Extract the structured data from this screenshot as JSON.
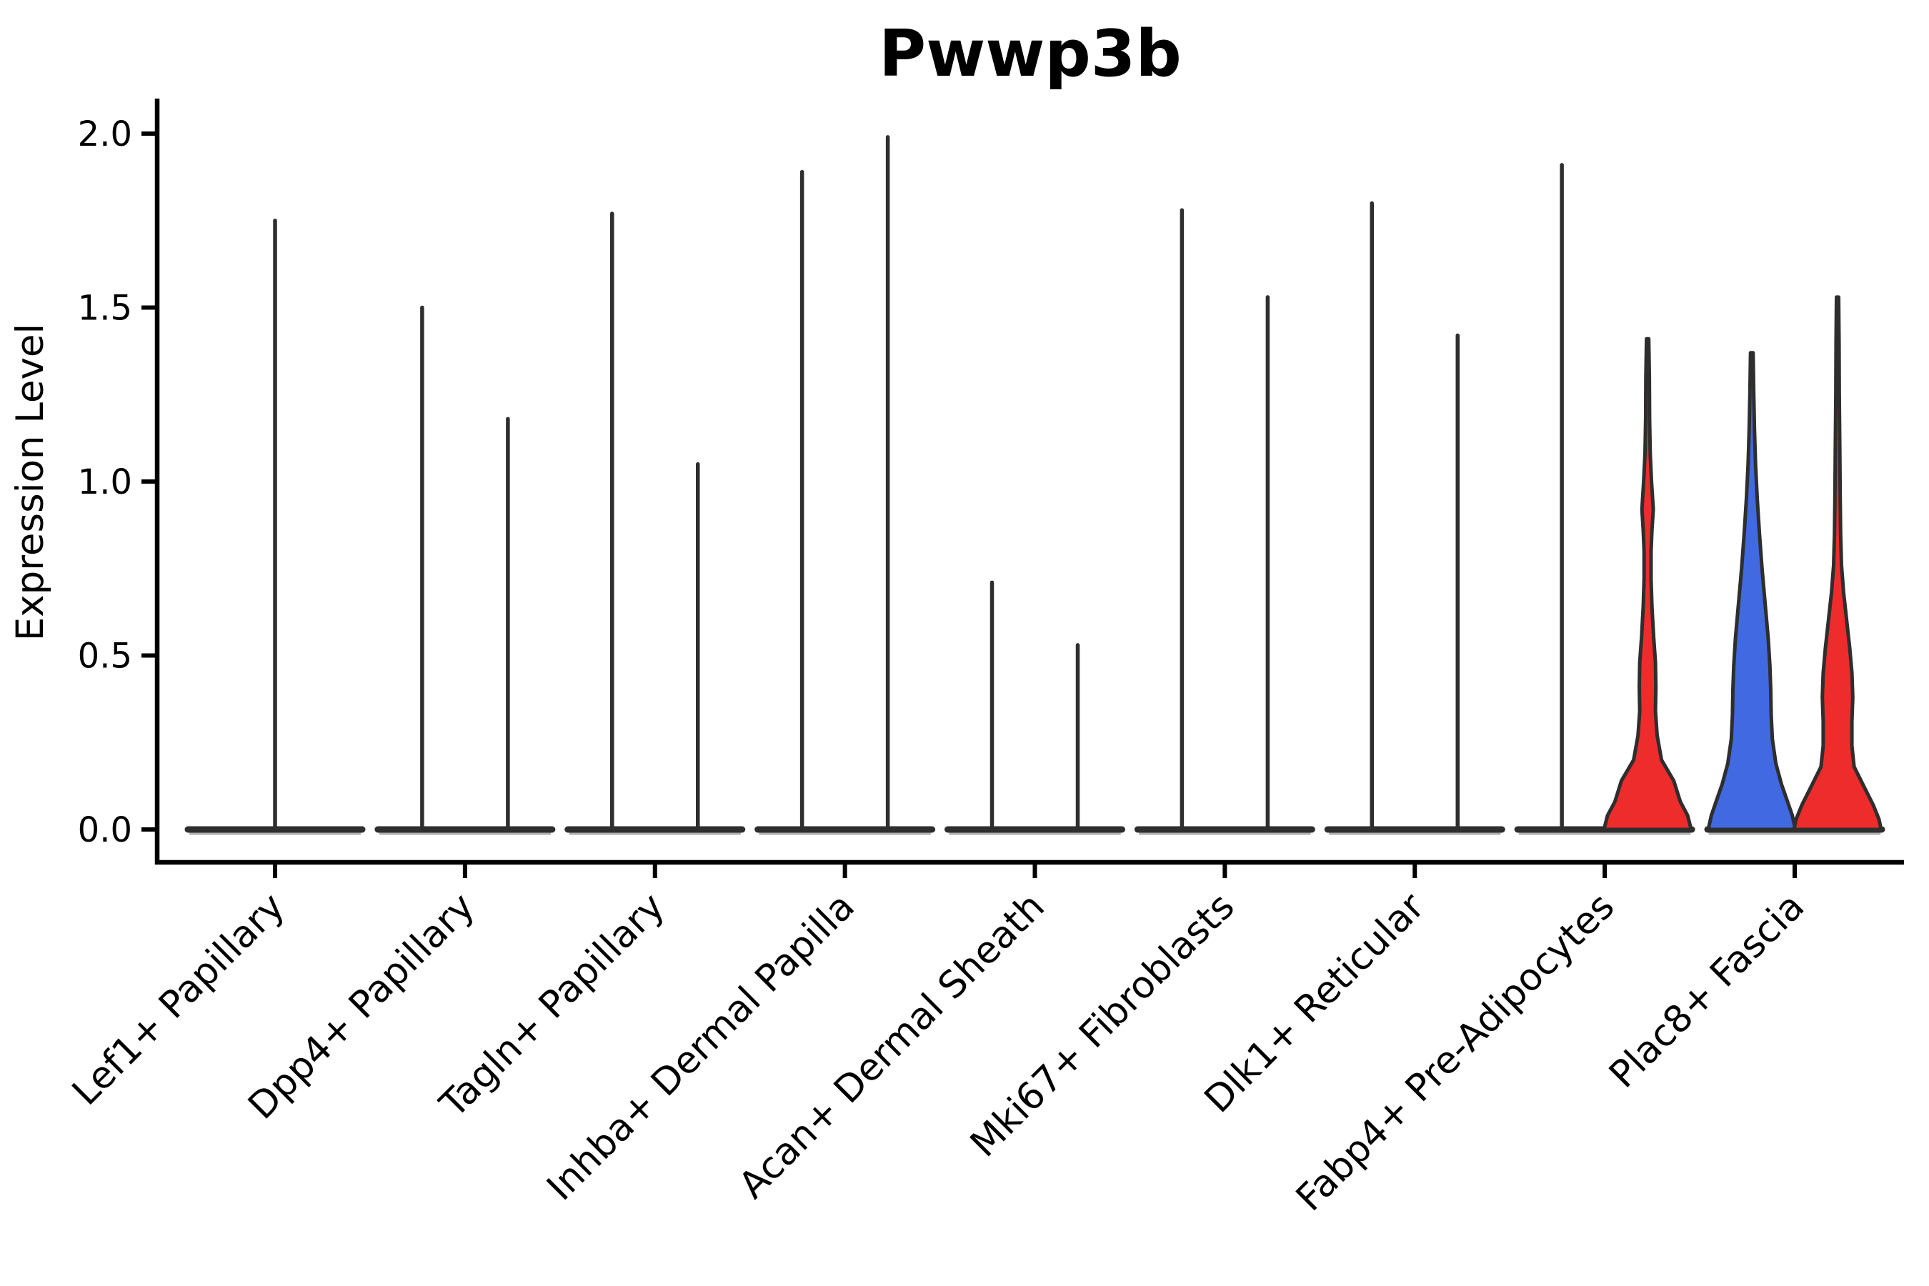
{
  "chart_data": {
    "type": "violin",
    "title": "Pwwp3b",
    "ylabel": "Expression Level",
    "xlabel": "",
    "ylim": [
      0.0,
      2.1
    ],
    "ytick_values": [
      0.0,
      0.5,
      1.0,
      1.5,
      2.0
    ],
    "ytick_labels": [
      "0.0",
      "0.5",
      "1.0",
      "1.5",
      "2.0"
    ],
    "grid": "off",
    "legend": "none",
    "split_violins_per_category": 2,
    "colors": {
      "red_fill": "#ee2c2c",
      "blue_fill": "#4169e1",
      "violin_outline": "#2e2e2e",
      "axis": "#000000",
      "background": "#ffffff"
    },
    "categories": [
      {
        "label": "Lef1+ Papillary",
        "violins": [
          {
            "type": "spike",
            "position": "center",
            "max_expression": 1.75,
            "fill": "none"
          }
        ]
      },
      {
        "label": "Dpp4+ Papillary",
        "violins": [
          {
            "type": "spike",
            "position": "left",
            "max_expression": 1.5,
            "fill": "none"
          },
          {
            "type": "spike",
            "position": "right",
            "max_expression": 1.18,
            "fill": "none"
          }
        ]
      },
      {
        "label": "Tagln+ Papillary",
        "violins": [
          {
            "type": "spike",
            "position": "left",
            "max_expression": 1.77,
            "fill": "none"
          },
          {
            "type": "spike",
            "position": "right",
            "max_expression": 1.05,
            "fill": "none"
          }
        ]
      },
      {
        "label": "Inhba+ Dermal Papilla",
        "violins": [
          {
            "type": "spike",
            "position": "left",
            "max_expression": 1.89,
            "fill": "none"
          },
          {
            "type": "spike",
            "position": "right",
            "max_expression": 1.99,
            "fill": "none"
          }
        ]
      },
      {
        "label": "Acan+ Dermal Sheath",
        "violins": [
          {
            "type": "spike",
            "position": "left",
            "max_expression": 0.71,
            "fill": "none"
          },
          {
            "type": "spike",
            "position": "right",
            "max_expression": 0.53,
            "fill": "none"
          }
        ]
      },
      {
        "label": "Mki67+ Fibroblasts",
        "violins": [
          {
            "type": "spike",
            "position": "left",
            "max_expression": 1.78,
            "fill": "none"
          },
          {
            "type": "spike",
            "position": "right",
            "max_expression": 1.53,
            "fill": "none"
          }
        ]
      },
      {
        "label": "Dlk1+ Reticular",
        "violins": [
          {
            "type": "spike",
            "position": "left",
            "max_expression": 1.8,
            "fill": "none"
          },
          {
            "type": "spike",
            "position": "right",
            "max_expression": 1.42,
            "fill": "none"
          }
        ]
      },
      {
        "label": "Fabp4+ Pre-Adipocytes",
        "violins": [
          {
            "type": "spike",
            "position": "left",
            "max_expression": 1.91,
            "fill": "none"
          },
          {
            "type": "violin",
            "position": "right",
            "max_expression": 1.41,
            "fill": "red",
            "profile": [
              [
                1.41,
                0.025
              ],
              [
                1.3,
                0.04
              ],
              [
                1.18,
                0.045
              ],
              [
                1.08,
                0.06
              ],
              [
                1.0,
                0.09
              ],
              [
                0.92,
                0.13
              ],
              [
                0.86,
                0.1
              ],
              [
                0.8,
                0.08
              ],
              [
                0.72,
                0.08
              ],
              [
                0.64,
                0.1
              ],
              [
                0.55,
                0.14
              ],
              [
                0.48,
                0.18
              ],
              [
                0.41,
                0.19
              ],
              [
                0.34,
                0.18
              ],
              [
                0.27,
                0.22
              ],
              [
                0.2,
                0.32
              ],
              [
                0.14,
                0.6
              ],
              [
                0.08,
                0.75
              ],
              [
                0.04,
                0.92
              ],
              [
                0.0,
                1.0
              ]
            ]
          }
        ]
      },
      {
        "label": "Plac8+ Fascia",
        "violins": [
          {
            "type": "violin",
            "position": "left",
            "max_expression": 1.37,
            "fill": "blue",
            "profile": [
              [
                1.37,
                0.03
              ],
              [
                1.25,
                0.045
              ],
              [
                1.15,
                0.06
              ],
              [
                1.05,
                0.085
              ],
              [
                0.95,
                0.125
              ],
              [
                0.85,
                0.175
              ],
              [
                0.75,
                0.235
              ],
              [
                0.65,
                0.305
              ],
              [
                0.55,
                0.375
              ],
              [
                0.47,
                0.415
              ],
              [
                0.4,
                0.435
              ],
              [
                0.33,
                0.445
              ],
              [
                0.26,
                0.47
              ],
              [
                0.19,
                0.55
              ],
              [
                0.13,
                0.68
              ],
              [
                0.08,
                0.82
              ],
              [
                0.04,
                0.93
              ],
              [
                0.0,
                1.0
              ]
            ]
          },
          {
            "type": "violin",
            "position": "right",
            "max_expression": 1.53,
            "fill": "red",
            "profile": [
              [
                1.53,
                0.025
              ],
              [
                1.4,
                0.035
              ],
              [
                1.25,
                0.04
              ],
              [
                1.1,
                0.05
              ],
              [
                0.95,
                0.06
              ],
              [
                0.85,
                0.07
              ],
              [
                0.76,
                0.09
              ],
              [
                0.68,
                0.14
              ],
              [
                0.6,
                0.21
              ],
              [
                0.52,
                0.28
              ],
              [
                0.45,
                0.33
              ],
              [
                0.38,
                0.35
              ],
              [
                0.31,
                0.33
              ],
              [
                0.24,
                0.33
              ],
              [
                0.18,
                0.38
              ],
              [
                0.12,
                0.62
              ],
              [
                0.07,
                0.82
              ],
              [
                0.03,
                0.95
              ],
              [
                0.0,
                1.0
              ]
            ]
          }
        ]
      }
    ]
  }
}
